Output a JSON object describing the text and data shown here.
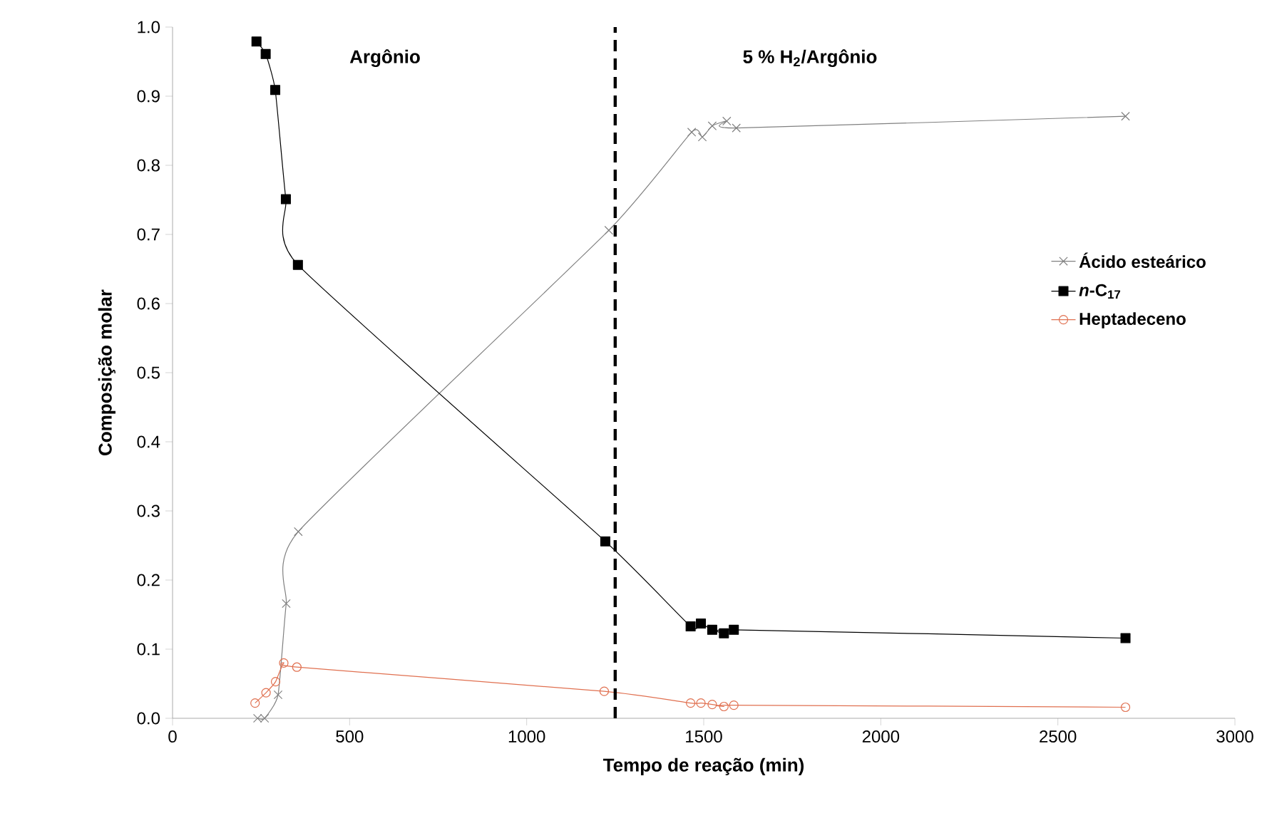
{
  "chart_data": {
    "type": "line",
    "xlabel": "Tempo de reação (min)",
    "ylabel": "Composição molar",
    "annotations": [
      "Argônio",
      "5 % H$_{2}$/Argônio"
    ],
    "series": [
      {
        "name": "Ácido esteárico",
        "color": "#808080",
        "marker": "cross",
        "x": [
          240,
          260,
          298,
          321,
          355,
          1232,
          1466,
          1496,
          1524,
          1565,
          1592,
          2691
        ],
        "values": [
          0.0,
          0.0,
          0.034,
          0.166,
          0.27,
          0.706,
          0.848,
          0.841,
          0.857,
          0.864,
          0.854,
          0.871
        ]
      },
      {
        "name": "*n*-C$_{17}$",
        "color": "#000000",
        "marker": "square",
        "x": [
          237,
          263,
          290,
          320,
          354,
          1222,
          1463,
          1492,
          1524,
          1557,
          1585,
          2691
        ],
        "values": [
          0.979,
          0.961,
          0.909,
          0.751,
          0.656,
          0.256,
          0.133,
          0.137,
          0.128,
          0.123,
          0.128,
          0.116
        ]
      },
      {
        "name": "Heptadeceno",
        "color": "#e07050",
        "marker": "circle",
        "x": [
          233,
          264,
          291,
          314,
          351,
          1219,
          1463,
          1492,
          1524,
          1557,
          1585,
          2691
        ],
        "values": [
          0.022,
          0.037,
          0.053,
          0.08,
          0.074,
          0.039,
          0.022,
          0.022,
          0.02,
          0.017,
          0.019,
          0.016
        ]
      }
    ],
    "xlim": [
      0,
      3000
    ],
    "xticks": [
      0,
      500,
      1000,
      1500,
      2000,
      2500,
      3000
    ],
    "ylim": [
      0,
      1
    ],
    "yticks": [
      {
        "value": 0,
        "label": "0.0"
      },
      {
        "value": 0.1,
        "label": "0.1"
      },
      {
        "value": 0.2,
        "label": "0.2"
      },
      {
        "value": 0.3,
        "label": "0.3"
      },
      {
        "value": 0.4,
        "label": "0.4"
      },
      {
        "value": 0.5,
        "label": "0.5"
      },
      {
        "value": 0.6,
        "label": "0.6"
      },
      {
        "value": 0.7,
        "label": "0.7"
      },
      {
        "value": 0.8,
        "label": "0.8"
      },
      {
        "value": 0.9,
        "label": "0.9"
      },
      {
        "value": 1,
        "label": "1.0"
      }
    ],
    "ref_lines": [
      {
        "axis": "x",
        "value": 1250,
        "color": "#000000",
        "line_style": "dashed"
      }
    ],
    "grid": false,
    "legend": "right"
  }
}
